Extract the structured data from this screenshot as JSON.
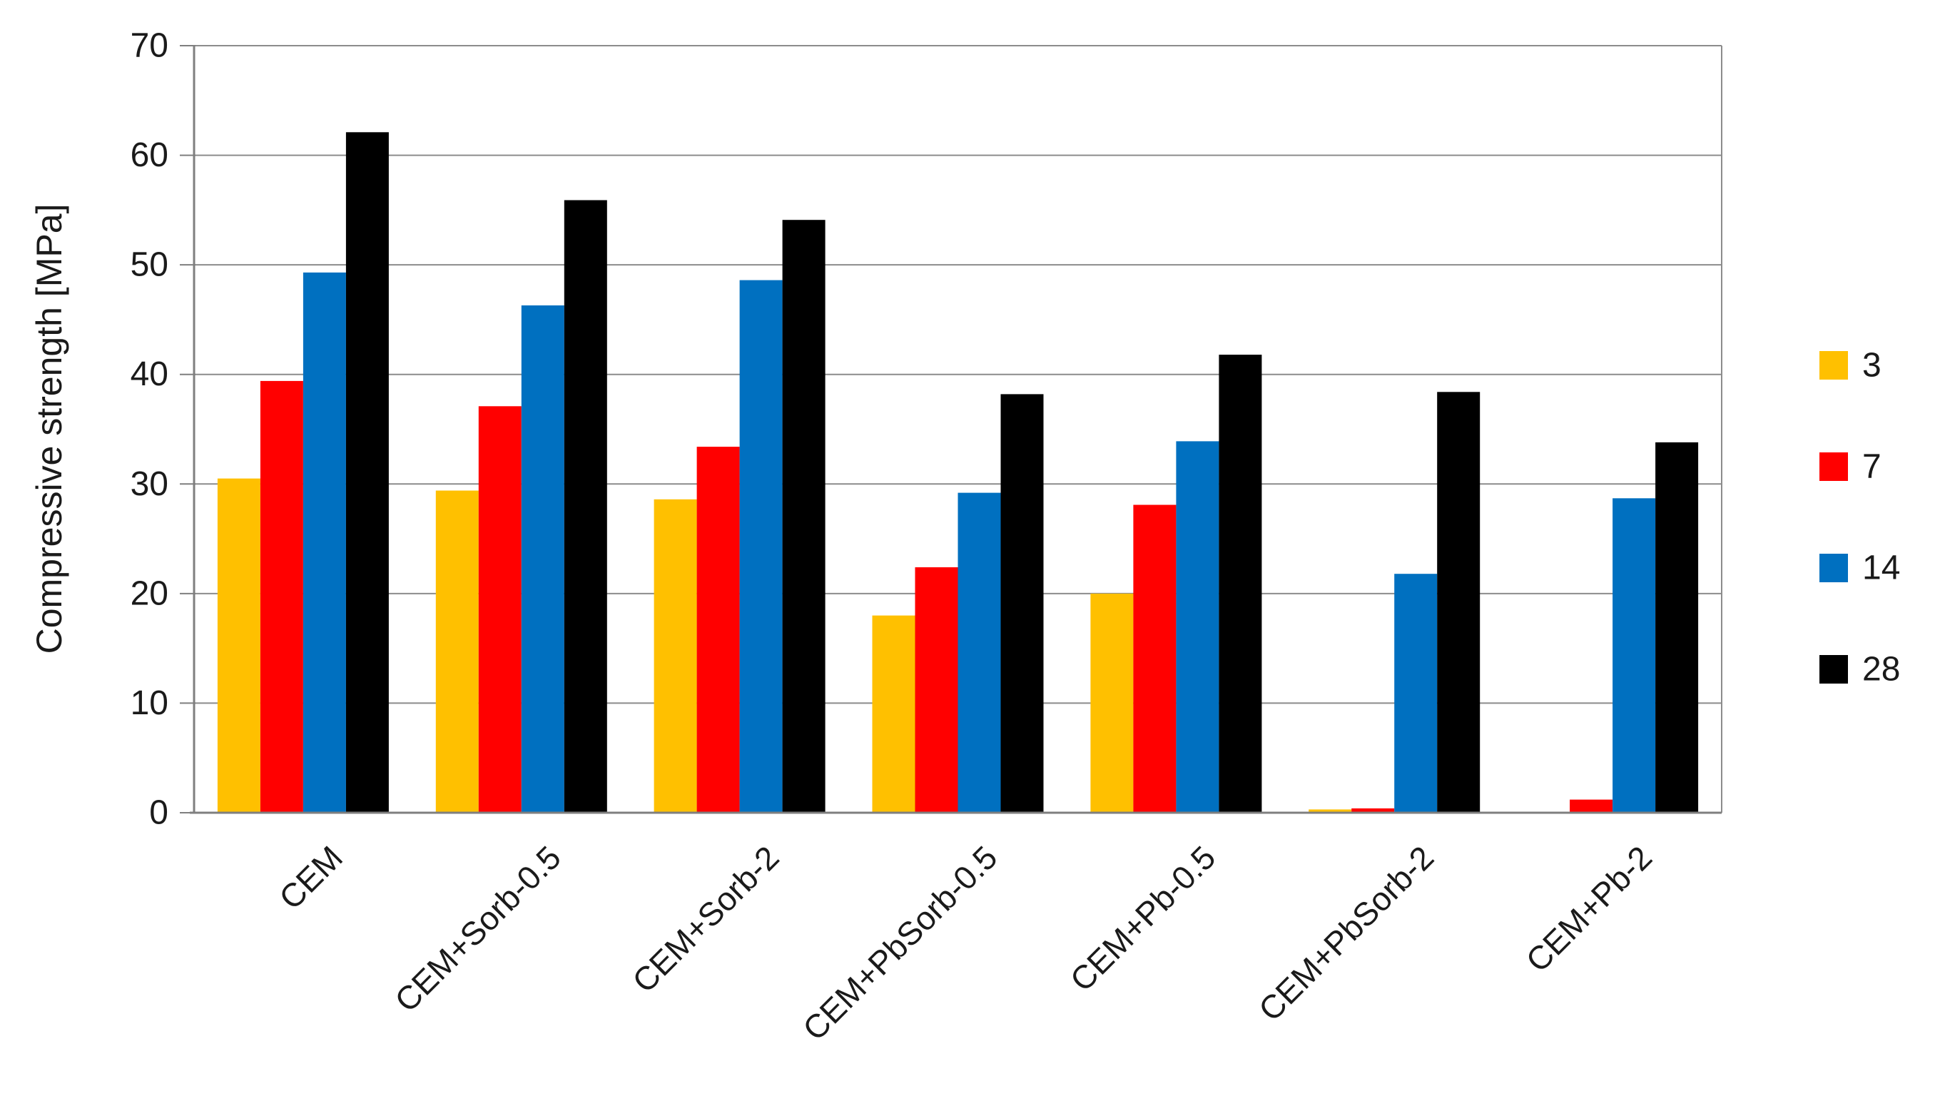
{
  "chart_data": {
    "type": "bar",
    "title": "",
    "categories": [
      "CEM",
      "CEM+Sorb-0.5",
      "CEM+Sorb-2",
      "CEM+PbSorb-0.5",
      "CEM+Pb-0.5",
      "CEM+PbSorb-2",
      "CEM+Pb-2"
    ],
    "series": [
      {
        "name": "3",
        "color": "#FFC000",
        "values": [
          30.5,
          29.4,
          28.6,
          18.0,
          20.0,
          0.3,
          0.0
        ]
      },
      {
        "name": "7",
        "color": "#FF0000",
        "values": [
          39.4,
          37.1,
          33.4,
          22.4,
          28.1,
          0.4,
          1.2
        ]
      },
      {
        "name": "14",
        "color": "#0070C0",
        "values": [
          49.3,
          46.3,
          48.6,
          29.2,
          33.9,
          21.8,
          28.7
        ]
      },
      {
        "name": "28",
        "color": "#000000",
        "values": [
          62.1,
          55.9,
          54.1,
          38.2,
          41.8,
          38.4,
          33.8
        ]
      }
    ],
    "xlabel": "",
    "ylabel": "Compressive strength [MPa]",
    "ylim": [
      0,
      70
    ],
    "yticks": [
      0,
      10,
      20,
      30,
      40,
      50,
      60,
      70
    ],
    "grid": true,
    "legend_position": "right",
    "legend_labels": [
      "3",
      "7",
      "14",
      "28"
    ]
  },
  "colors": {
    "gridline": "#8C8C8C",
    "axis": "#7F7F7F",
    "text": "#1A1A1A",
    "background": "#FFFFFF"
  }
}
